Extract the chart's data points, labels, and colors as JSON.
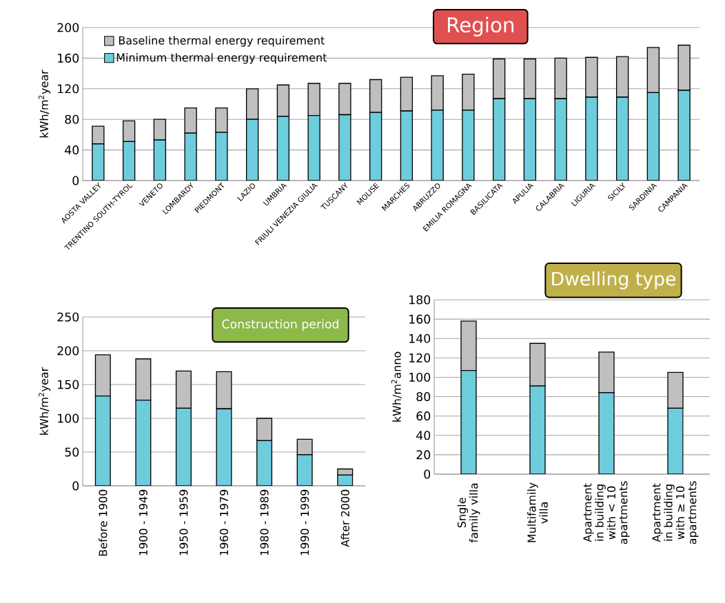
{
  "chart_data": [
    {
      "type": "bar",
      "stacked": true,
      "title": "Region",
      "ylabel": "kWh/m$^{2}$year",
      "categories": [
        "AOSTA VALLEY",
        "TRENTINO SOUTH-TYROL",
        "VENETO",
        "LOMBARDY",
        "PIEDMONT",
        "LAZIO",
        "UMBRIA",
        "FRIULI VENEZIA GIULIA",
        "TUSCANY",
        "MOLISE",
        "MARCHES",
        "ABRUZZO",
        "EMILIA ROMAGNA",
        "BASILICATA",
        "APULIA",
        "CALABRIA",
        "LIGURIA",
        "SICILY",
        "SARDINIA",
        "CAMPANIA"
      ],
      "series": [
        {
          "name": "Minimum thermal energy requirement",
          "color": "#6dcddd",
          "values": [
            48,
            51,
            53,
            62,
            63,
            80,
            84,
            85,
            86,
            89,
            91,
            92,
            92,
            107,
            107,
            107,
            109,
            109,
            115,
            118
          ]
        },
        {
          "name": "Baseline thermal energy requirement",
          "color": "#bfbfbf",
          "values": [
            23,
            27,
            27,
            33,
            32,
            40,
            41,
            42,
            41,
            43,
            44,
            45,
            47,
            52,
            52,
            53,
            52,
            53,
            59,
            59
          ]
        }
      ],
      "ylim": [
        0,
        200
      ],
      "yticks": [
        0,
        40,
        80,
        120,
        160,
        200
      ],
      "grid": "y",
      "legend": "top left"
    },
    {
      "type": "bar",
      "stacked": true,
      "title": "Construction period",
      "ylabel": "kWh/m$^{2}$year",
      "categories": [
        "Before 1900",
        "1900 - 1949",
        "1950 - 1959",
        "1960 - 1979",
        "1980 - 1989",
        "1990 - 1999",
        "After 2000"
      ],
      "series": [
        {
          "color": "#6dcddd",
          "values": [
            133,
            127,
            115,
            114,
            67,
            46,
            16
          ]
        },
        {
          "color": "#bfbfbf",
          "values": [
            61,
            61,
            55,
            55,
            33,
            23,
            9
          ]
        }
      ],
      "ylim": [
        0,
        250
      ],
      "yticks": [
        0,
        50,
        100,
        150,
        200,
        250
      ],
      "grid": "y"
    },
    {
      "type": "bar",
      "stacked": true,
      "title": "Dwelling type",
      "ylabel": "kWh/m$^{2}$anno",
      "categories": [
        "Sngle family villa",
        "Multifamily villa",
        "Apartment  in building with < 10 apartments",
        "Apartment  in building with ≥ 10 apartments"
      ],
      "series": [
        {
          "color": "#6dcddd",
          "values": [
            107,
            91,
            84,
            68
          ]
        },
        {
          "color": "#bfbfbf",
          "values": [
            51,
            44,
            42,
            37
          ]
        }
      ],
      "ylim": [
        0,
        180
      ],
      "yticks": [
        0,
        20,
        40,
        60,
        80,
        100,
        120,
        140,
        160,
        180
      ],
      "grid": "y"
    }
  ]
}
